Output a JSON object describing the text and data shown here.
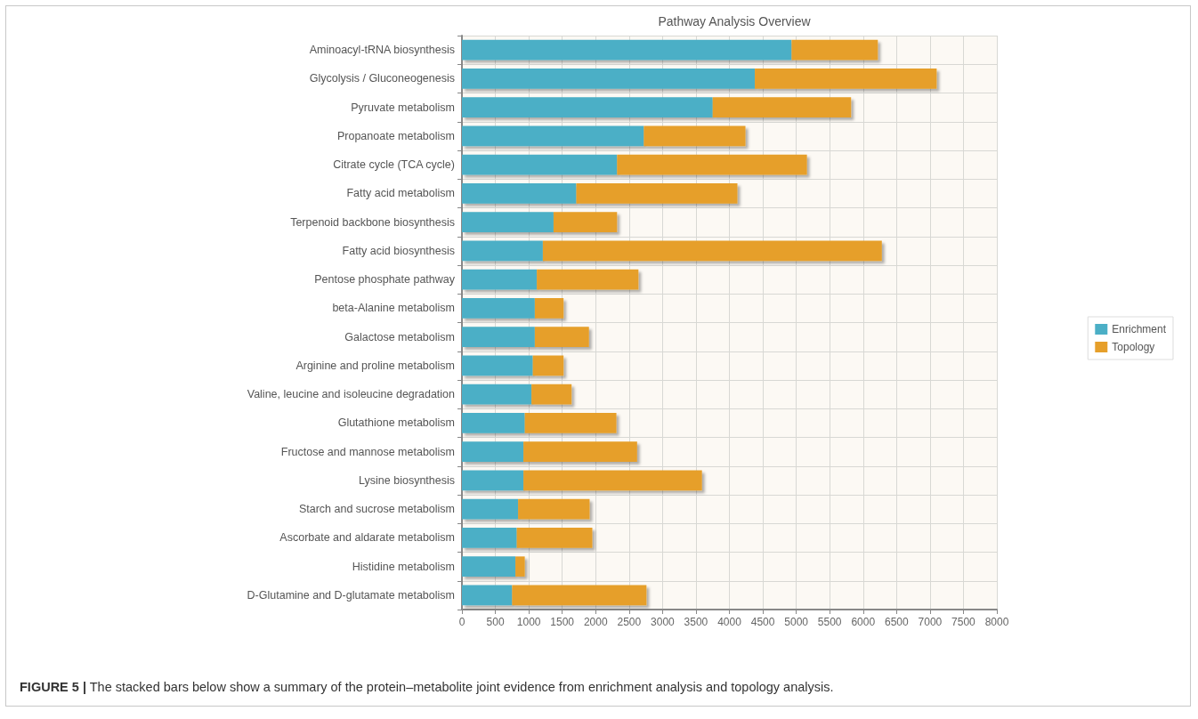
{
  "chart_data": {
    "type": "bar",
    "orientation": "horizontal",
    "stacked": true,
    "title": "Pathway Analysis Overview",
    "categories": [
      "Aminoacyl-tRNA biosynthesis",
      "Glycolysis / Gluconeogenesis",
      "Pyruvate metabolism",
      "Propanoate metabolism",
      "Citrate cycle (TCA cycle)",
      "Fatty acid metabolism",
      "Terpenoid backbone biosynthesis",
      "Fatty acid biosynthesis",
      "Pentose phosphate pathway",
      "beta-Alanine metabolism",
      "Galactose metabolism",
      "Arginine and proline metabolism",
      "Valine, leucine and isoleucine degradation",
      "Glutathione metabolism",
      "Fructose and mannose metabolism",
      "Lysine biosynthesis",
      "Starch and sucrose metabolism",
      "Ascorbate and aldarate metabolism",
      "Histidine metabolism",
      "D-Glutamine and D-glutamate metabolism"
    ],
    "series": [
      {
        "name": "Enrichment",
        "color": "#4bafc6",
        "values": [
          4930,
          4380,
          3750,
          2720,
          2320,
          1710,
          1370,
          1210,
          1120,
          1090,
          1090,
          1060,
          1040,
          940,
          920,
          920,
          840,
          820,
          800,
          750
        ]
      },
      {
        "name": "Topology",
        "color": "#e69f2a",
        "values": [
          1290,
          2720,
          2070,
          1520,
          2840,
          2410,
          950,
          5070,
          1520,
          430,
          810,
          460,
          600,
          1370,
          1700,
          2670,
          1070,
          1130,
          140,
          2010
        ]
      }
    ],
    "xlim": [
      0,
      8000
    ],
    "xticks": [
      0,
      500,
      1000,
      1500,
      2000,
      2500,
      3000,
      3500,
      4000,
      4500,
      5000,
      5500,
      6000,
      6500,
      7000,
      7500,
      8000
    ],
    "grid": true,
    "legend": "right",
    "annotations": [
      "FIGURE 5 | The stacked bars below show a summary of the protein–metabolite joint evidence from enrichment analysis and topology analysis."
    ]
  }
}
